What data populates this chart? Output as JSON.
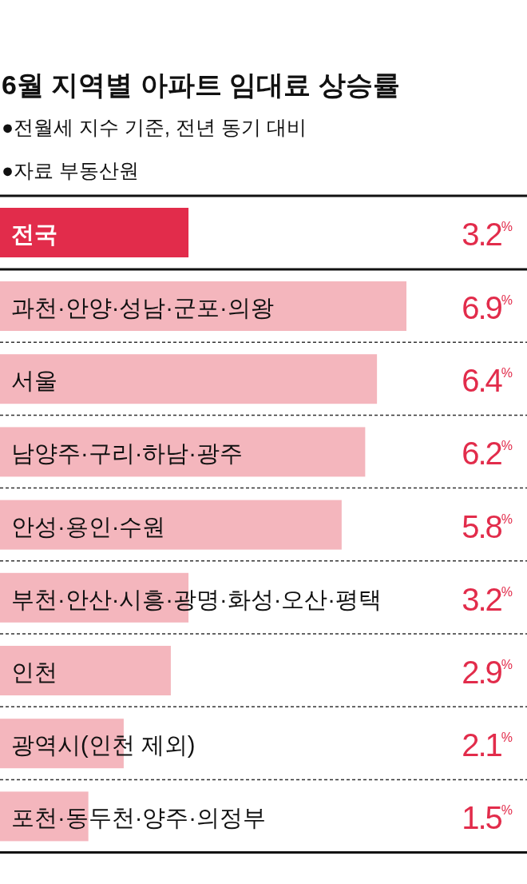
{
  "chart_data": {
    "type": "bar",
    "orientation": "horizontal",
    "title": "6월 지역별 아파트 임대료 상승률",
    "subtitle": "●전월세 지수 기준, 전년 동기 대비",
    "annotations": [
      "●자료 부동산원"
    ],
    "categories": [
      "전국",
      "과천·안양·성남·군포·의왕",
      "서울",
      "남양주·구리·하남·광주",
      "안성·용인·수원",
      "부천·안산·시흥·광명·화성·오산·평택",
      "인천",
      "광역시(인천 제외)",
      "포천·동두천·양주·의정부"
    ],
    "values": [
      3.2,
      6.9,
      6.4,
      6.2,
      5.8,
      3.2,
      2.9,
      2.1,
      1.5
    ],
    "colors": [
      "#e22c4b",
      "#f4b6bd",
      "#f4b6bd",
      "#f4b6bd",
      "#f4b6bd",
      "#f4b6bd",
      "#f4b6bd",
      "#f4b6bd",
      "#f4b6bd"
    ],
    "value_labels": [
      "3.2$^{%}$",
      "6.9$^{%}$",
      "6.4$^{%}$",
      "6.2$^{%}$",
      "5.8$^{%}$",
      "3.2$^{%}$",
      "2.9$^{%}$",
      "2.1$^{%}$",
      "1.5$^{%}$"
    ]
  }
}
